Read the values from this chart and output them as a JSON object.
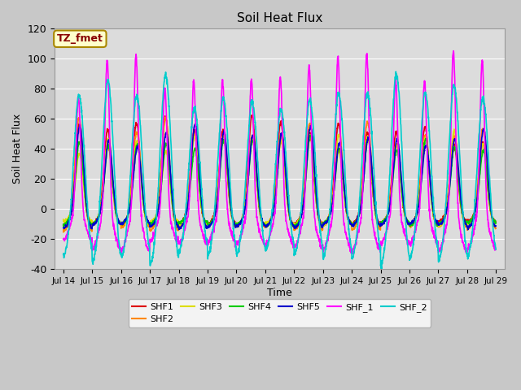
{
  "title": "Soil Heat Flux",
  "xlabel": "Time",
  "ylabel": "Soil Heat Flux",
  "ylim": [
    -40,
    120
  ],
  "yticks": [
    -40,
    -20,
    0,
    20,
    40,
    60,
    80,
    100,
    120
  ],
  "xtick_labels": [
    "Jul 14",
    "Jul 15",
    "Jul 16",
    "Jul 17",
    "Jul 18",
    "Jul 19",
    "Jul 20",
    "Jul 21",
    "Jul 22",
    "Jul 23",
    "Jul 24",
    "Jul 25",
    "Jul 26",
    "Jul 27",
    "Jul 28",
    "Jul 29"
  ],
  "annotation_text": "TZ_fmet",
  "annotation_bg": "#ffffcc",
  "annotation_border": "#aa8800",
  "annotation_text_color": "#880000",
  "series": [
    {
      "name": "SHF1",
      "color": "#dd0000",
      "lw": 1.2
    },
    {
      "name": "SHF2",
      "color": "#ff8800",
      "lw": 1.2
    },
    {
      "name": "SHF3",
      "color": "#dddd00",
      "lw": 1.2
    },
    {
      "name": "SHF4",
      "color": "#00cc00",
      "lw": 1.2
    },
    {
      "name": "SHF5",
      "color": "#0000cc",
      "lw": 1.2
    },
    {
      "name": "SHF_1",
      "color": "#ff00ff",
      "lw": 1.2
    },
    {
      "name": "SHF_2",
      "color": "#00cccc",
      "lw": 1.2
    }
  ],
  "figsize": [
    6.4,
    4.8
  ],
  "dpi": 100
}
